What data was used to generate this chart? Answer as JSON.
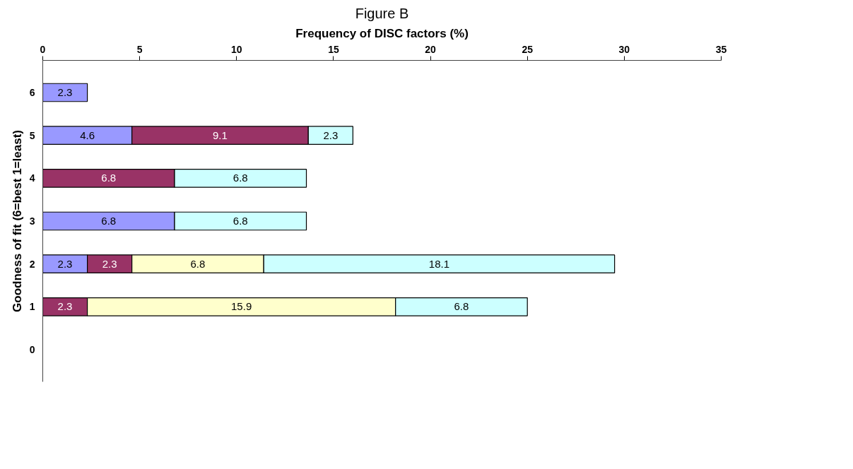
{
  "chart_data": {
    "type": "bar",
    "orientation": "horizontal",
    "stacked": true,
    "title": "Figure B",
    "xlabel": "Frequency of DISC factors (%)",
    "ylabel": "Goodness of fit (6=best 1=least)",
    "categories": [
      "6",
      "5",
      "4",
      "3",
      "2",
      "1",
      "0"
    ],
    "series": [
      {
        "color": "#9999ff",
        "values": [
          2.3,
          4.6,
          null,
          6.8,
          2.3,
          null,
          null
        ]
      },
      {
        "color": "#993366",
        "values": [
          null,
          9.1,
          6.8,
          null,
          2.3,
          2.3,
          null
        ]
      },
      {
        "color": "#ffffcc",
        "values": [
          null,
          null,
          null,
          null,
          6.8,
          15.9,
          null
        ]
      },
      {
        "color": "#ccffff",
        "values": [
          null,
          2.3,
          6.8,
          6.8,
          18.1,
          6.8,
          null
        ]
      }
    ],
    "xlim": [
      0,
      35
    ],
    "xticks": [
      0,
      5,
      10,
      15,
      20,
      25,
      30,
      35
    ],
    "data_labels": true,
    "grid": false
  }
}
